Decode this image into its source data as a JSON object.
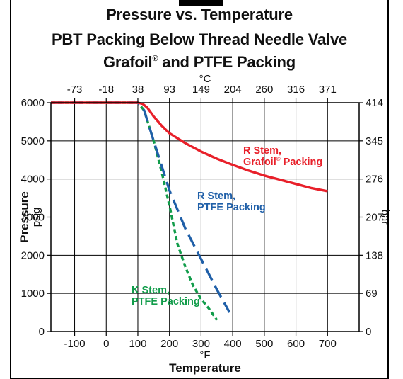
{
  "title_lines": [
    "Pressure vs. Temperature",
    "PBT Packing Below Thread Needle Valve",
    "Grafoil",
    " and PTFE Packing"
  ],
  "registered_mark": "®",
  "chart_data": {
    "type": "line",
    "xlabel": "Temperature",
    "x_unit": "°F",
    "x2_unit": "°C",
    "ylabel": "Pressure",
    "y_unit": "psig",
    "y2_unit": "bar",
    "xlim": [
      -175,
      800
    ],
    "ylim": [
      0,
      6000
    ],
    "x_ticks": [
      "-100",
      "0",
      "100",
      "200",
      "300",
      "400",
      "500",
      "600",
      "700"
    ],
    "x2_ticks": [
      "-73",
      "-18",
      "38",
      "93",
      "149",
      "204",
      "260",
      "316",
      "371"
    ],
    "y_ticks": [
      "0",
      "1000",
      "2000",
      "3000",
      "4000",
      "5000",
      "6000"
    ],
    "y2_ticks": [
      "0",
      "69",
      "138",
      "207",
      "276",
      "345",
      "414"
    ],
    "grid": true,
    "series": [
      {
        "label_lines": [
          "R Stem,",
          "Grafoil",
          " Packing"
        ],
        "color": "#e8202a",
        "style": "solid",
        "x": [
          -175,
          100,
          115,
          130,
          150,
          175,
          200,
          250,
          300,
          350,
          400,
          450,
          500,
          550,
          600,
          650,
          700
        ],
        "y": [
          6000,
          6000,
          5970,
          5870,
          5640,
          5400,
          5200,
          4940,
          4720,
          4530,
          4370,
          4220,
          4090,
          3980,
          3870,
          3760,
          3680
        ]
      },
      {
        "label_lines": [
          "R Stem,",
          "PTFE Packing"
        ],
        "color": "#1f5fa8",
        "style": "long-dash",
        "x": [
          -175,
          100,
          120,
          150,
          175,
          200,
          250,
          300,
          350,
          390
        ],
        "y": [
          6000,
          6000,
          5800,
          5000,
          4350,
          3700,
          2700,
          1900,
          1100,
          500
        ]
      },
      {
        "label_lines": [
          "K Stem,",
          "PTFE Packing"
        ],
        "color": "#119c4a",
        "style": "short-dash",
        "x": [
          -175,
          100,
          120,
          150,
          175,
          200,
          210,
          225,
          250,
          275,
          300,
          325,
          350
        ],
        "y": [
          6000,
          6000,
          5800,
          5000,
          4200,
          3300,
          2900,
          2300,
          1700,
          1200,
          850,
          600,
          300
        ]
      }
    ]
  }
}
